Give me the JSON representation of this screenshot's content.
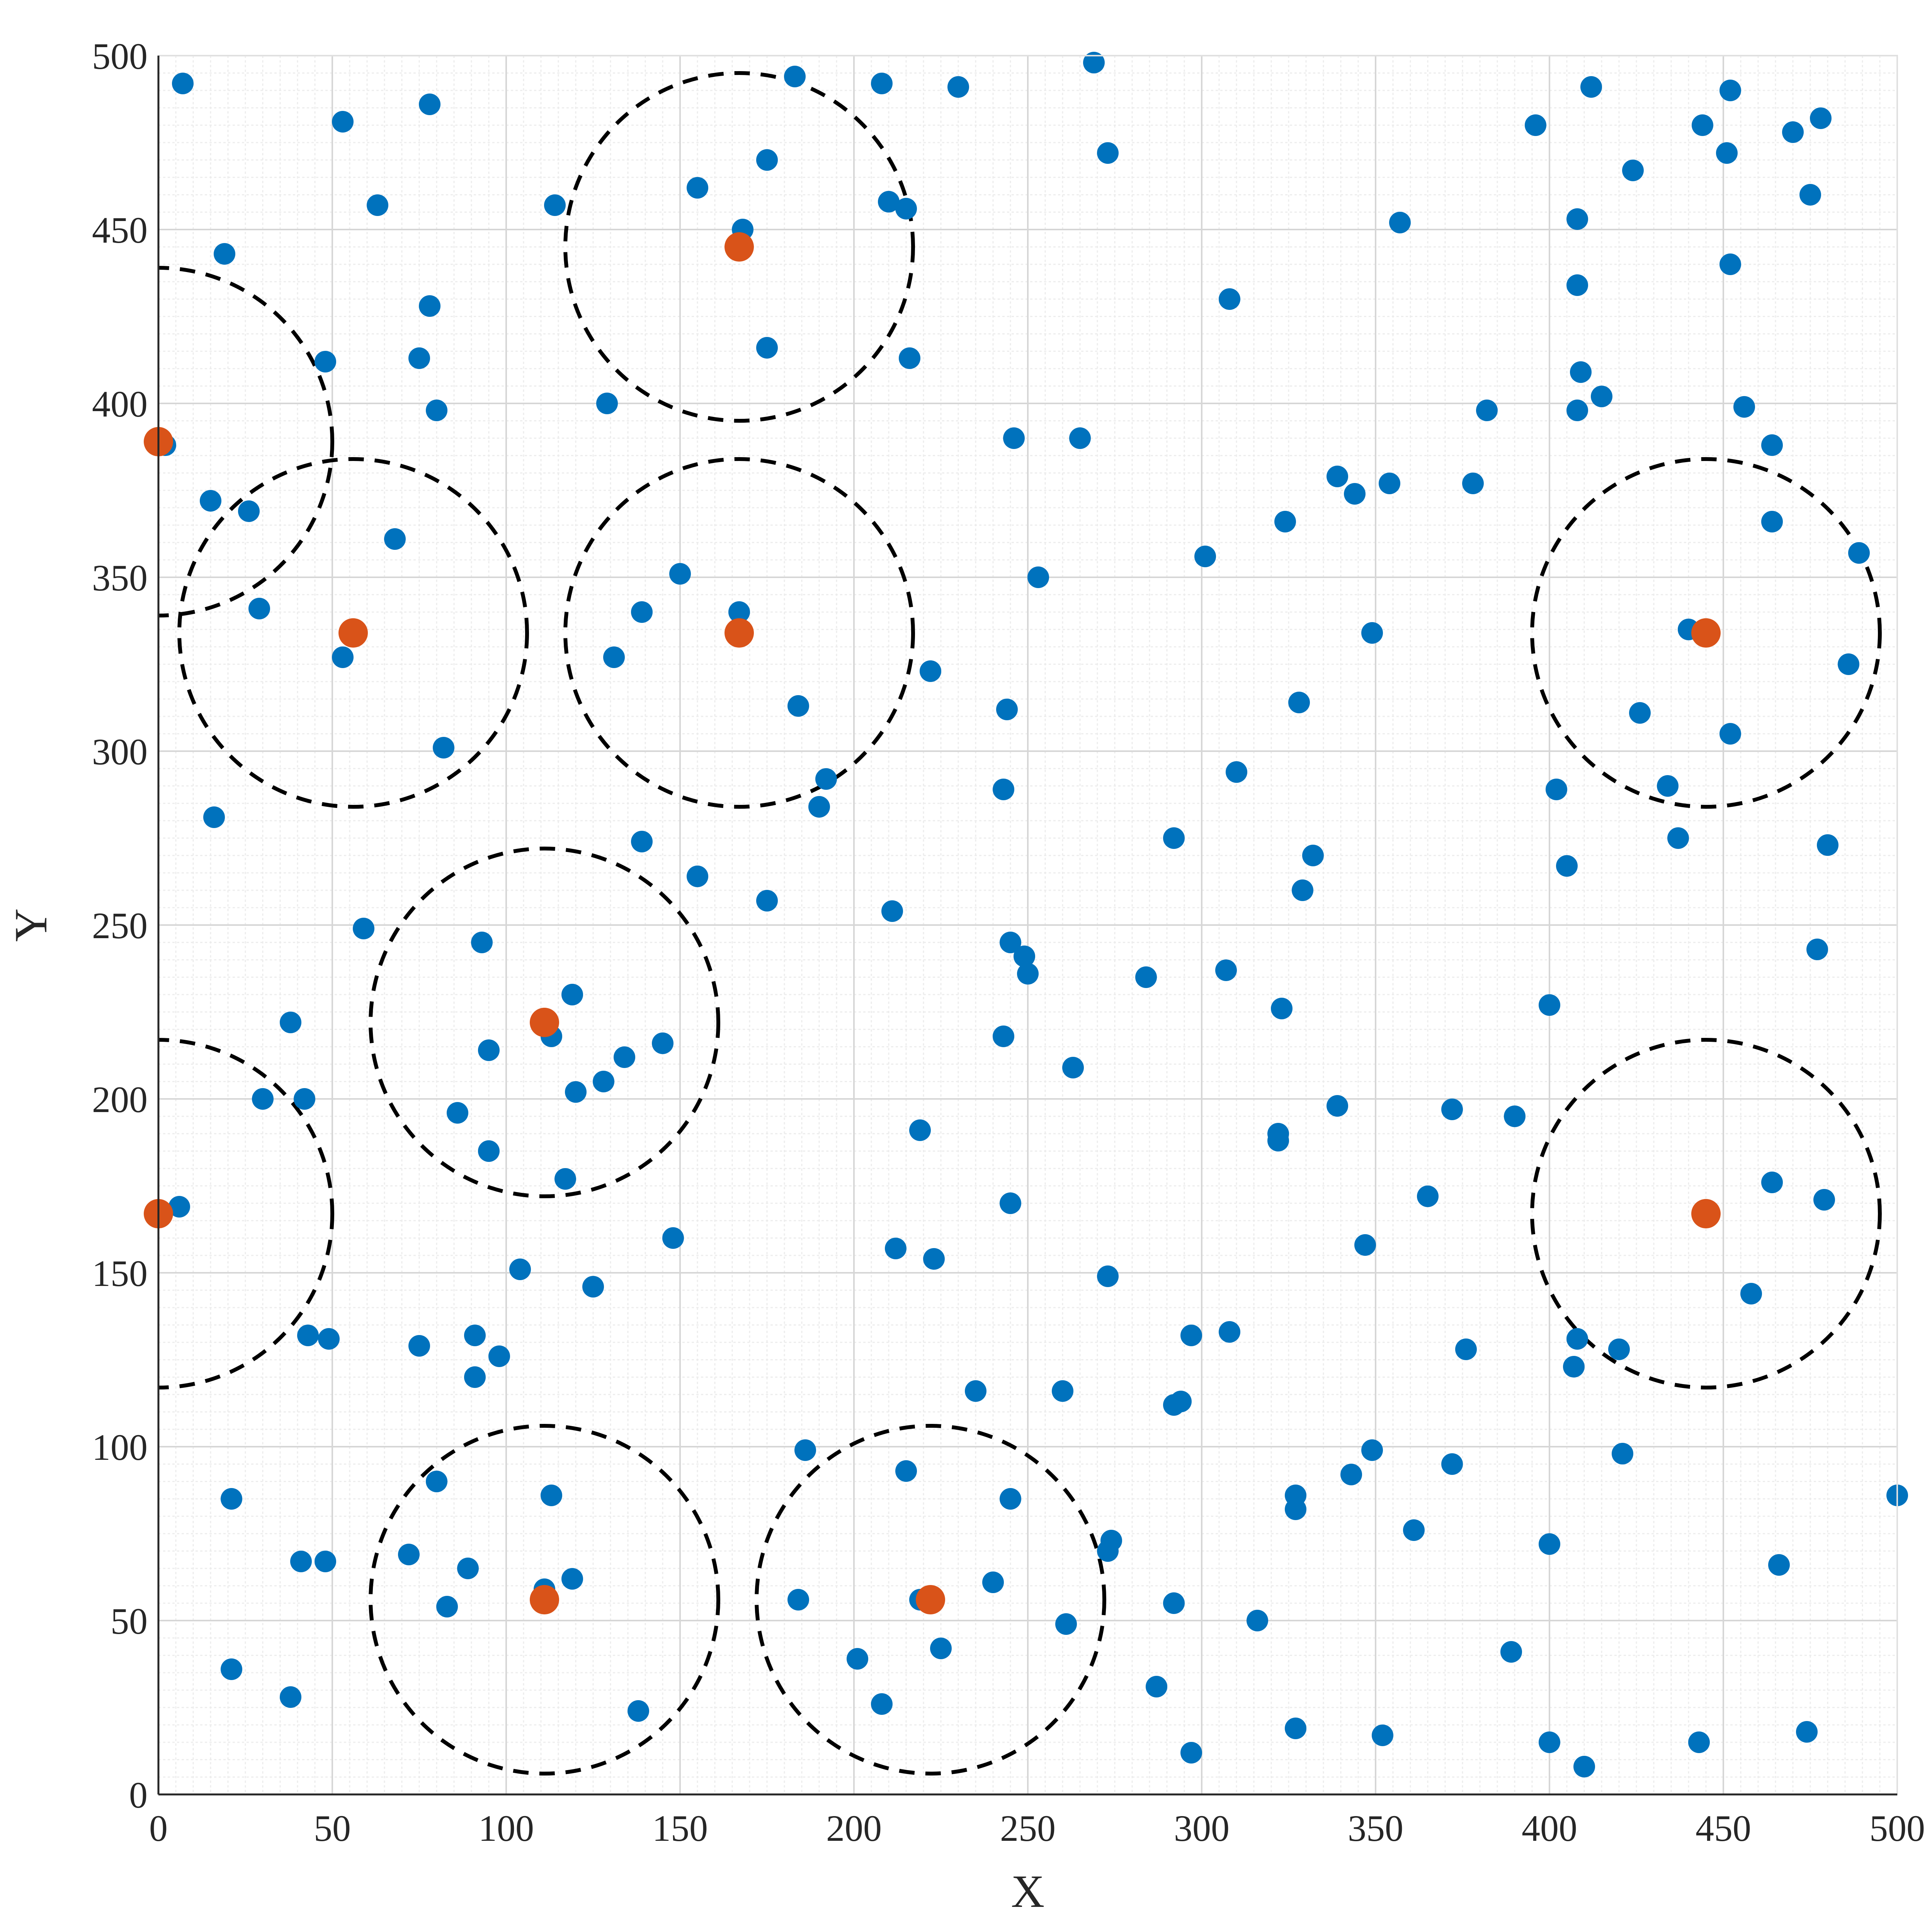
{
  "chart_data": {
    "type": "scatter",
    "title": "",
    "xlabel": "X",
    "ylabel": "Y",
    "xlim": [
      0,
      500
    ],
    "ylim": [
      0,
      500
    ],
    "xticks": [
      "0",
      "50",
      "100",
      "150",
      "200",
      "250",
      "300",
      "350",
      "400",
      "450",
      "500"
    ],
    "yticks": [
      "0",
      "50",
      "100",
      "150",
      "200",
      "250",
      "300",
      "350",
      "400",
      "450",
      "500"
    ],
    "grid": true,
    "minor_grid": true,
    "legend": "none",
    "colors": {
      "points": "#0072BD",
      "centers": "#D95319",
      "circles": "#000000"
    },
    "circle_radius": 50,
    "series": [
      {
        "points": [
          [
            7,
            492
          ],
          [
            53,
            481
          ],
          [
            78,
            486
          ],
          [
            183,
            494
          ],
          [
            208,
            492
          ],
          [
            230,
            491
          ],
          [
            269,
            498
          ],
          [
            19,
            443
          ],
          [
            63,
            457
          ],
          [
            114,
            457
          ],
          [
            155,
            462
          ],
          [
            175,
            470
          ],
          [
            168,
            450
          ],
          [
            210,
            458
          ],
          [
            215,
            456
          ],
          [
            273,
            472
          ],
          [
            78,
            428
          ],
          [
            48,
            412
          ],
          [
            75,
            413
          ],
          [
            80,
            398
          ],
          [
            129,
            400
          ],
          [
            175,
            416
          ],
          [
            216,
            413
          ],
          [
            246,
            390
          ],
          [
            265,
            390
          ],
          [
            308,
            430
          ],
          [
            357,
            452
          ],
          [
            396,
            480
          ],
          [
            412,
            491
          ],
          [
            424,
            467
          ],
          [
            408,
            453
          ],
          [
            408,
            434
          ],
          [
            409,
            409
          ],
          [
            408,
            398
          ],
          [
            415,
            402
          ],
          [
            382,
            398
          ],
          [
            444,
            480
          ],
          [
            452,
            490
          ],
          [
            451,
            472
          ],
          [
            452,
            440
          ],
          [
            470,
            478
          ],
          [
            478,
            482
          ],
          [
            475,
            460
          ],
          [
            456,
            399
          ],
          [
            464,
            388
          ],
          [
            464,
            366
          ],
          [
            489,
            357
          ],
          [
            2,
            388
          ],
          [
            15,
            372
          ],
          [
            26,
            369
          ],
          [
            29,
            341
          ],
          [
            53,
            327
          ],
          [
            68,
            361
          ],
          [
            82,
            301
          ],
          [
            16,
            281
          ],
          [
            150,
            351
          ],
          [
            139,
            340
          ],
          [
            131,
            327
          ],
          [
            167,
            340
          ],
          [
            184,
            313
          ],
          [
            192,
            292
          ],
          [
            190,
            284
          ],
          [
            222,
            323
          ],
          [
            244,
            312
          ],
          [
            243,
            289
          ],
          [
            253,
            350
          ],
          [
            339,
            379
          ],
          [
            344,
            374
          ],
          [
            354,
            377
          ],
          [
            324,
            366
          ],
          [
            301,
            356
          ],
          [
            349,
            334
          ],
          [
            328,
            314
          ],
          [
            310,
            294
          ],
          [
            378,
            377
          ],
          [
            440,
            335
          ],
          [
            486,
            325
          ],
          [
            426,
            311
          ],
          [
            452,
            305
          ],
          [
            434,
            290
          ],
          [
            402,
            289
          ],
          [
            437,
            275
          ],
          [
            480,
            273
          ],
          [
            405,
            267
          ],
          [
            477,
            243
          ],
          [
            59,
            249
          ],
          [
            93,
            245
          ],
          [
            38,
            222
          ],
          [
            30,
            200
          ],
          [
            42,
            200
          ],
          [
            86,
            196
          ],
          [
            95,
            185
          ],
          [
            95,
            214
          ],
          [
            139,
            274
          ],
          [
            155,
            264
          ],
          [
            175,
            257
          ],
          [
            113,
            218
          ],
          [
            119,
            230
          ],
          [
            145,
            216
          ],
          [
            134,
            212
          ],
          [
            128,
            205
          ],
          [
            120,
            202
          ],
          [
            117,
            177
          ],
          [
            211,
            254
          ],
          [
            245,
            245
          ],
          [
            249,
            241
          ],
          [
            250,
            236
          ],
          [
            243,
            218
          ],
          [
            263,
            209
          ],
          [
            219,
            191
          ],
          [
            245,
            170
          ],
          [
            292,
            275
          ],
          [
            284,
            235
          ],
          [
            307,
            237
          ],
          [
            323,
            226
          ],
          [
            332,
            270
          ],
          [
            329,
            260
          ],
          [
            339,
            198
          ],
          [
            322,
            190
          ],
          [
            322,
            188
          ],
          [
            372,
            197
          ],
          [
            390,
            195
          ],
          [
            365,
            172
          ],
          [
            400,
            227
          ],
          [
            347,
            158
          ],
          [
            6,
            169
          ],
          [
            104,
            151
          ],
          [
            148,
            160
          ],
          [
            125,
            146
          ],
          [
            212,
            157
          ],
          [
            223,
            154
          ],
          [
            273,
            149
          ],
          [
            43,
            132
          ],
          [
            49,
            131
          ],
          [
            75,
            129
          ],
          [
            91,
            132
          ],
          [
            98,
            126
          ],
          [
            91,
            120
          ],
          [
            235,
            116
          ],
          [
            260,
            116
          ],
          [
            297,
            132
          ],
          [
            308,
            133
          ],
          [
            376,
            128
          ],
          [
            292,
            112
          ],
          [
            294,
            113
          ],
          [
            464,
            176
          ],
          [
            479,
            171
          ],
          [
            458,
            144
          ],
          [
            408,
            131
          ],
          [
            407,
            123
          ],
          [
            420,
            128
          ],
          [
            421,
            98
          ],
          [
            186,
            99
          ],
          [
            215,
            93
          ],
          [
            245,
            85
          ],
          [
            274,
            73
          ],
          [
            273,
            70
          ],
          [
            21,
            85
          ],
          [
            80,
            90
          ],
          [
            113,
            86
          ],
          [
            72,
            69
          ],
          [
            41,
            67
          ],
          [
            48,
            67
          ],
          [
            89,
            65
          ],
          [
            83,
            54
          ],
          [
            111,
            59
          ],
          [
            119,
            62
          ],
          [
            184,
            56
          ],
          [
            219,
            56
          ],
          [
            240,
            61
          ],
          [
            225,
            42
          ],
          [
            201,
            39
          ],
          [
            261,
            49
          ],
          [
            21,
            36
          ],
          [
            38,
            28
          ],
          [
            138,
            24
          ],
          [
            208,
            26
          ],
          [
            292,
            55
          ],
          [
            316,
            50
          ],
          [
            287,
            31
          ],
          [
            297,
            12
          ],
          [
            327,
            86
          ],
          [
            327,
            82
          ],
          [
            343,
            92
          ],
          [
            349,
            99
          ],
          [
            372,
            95
          ],
          [
            361,
            76
          ],
          [
            327,
            19
          ],
          [
            352,
            17
          ],
          [
            400,
            72
          ],
          [
            389,
            41
          ],
          [
            400,
            15
          ],
          [
            410,
            8
          ],
          [
            443,
            15
          ],
          [
            466,
            66
          ],
          [
            474,
            18
          ],
          [
            500,
            86
          ]
        ]
      },
      {
        "points": [
          [
            167,
            445
          ],
          [
            0,
            389
          ],
          [
            56,
            334
          ],
          [
            167,
            334
          ],
          [
            445,
            334
          ],
          [
            111,
            222
          ],
          [
            0,
            167
          ],
          [
            445,
            167
          ],
          [
            111,
            56
          ],
          [
            222,
            56
          ]
        ]
      }
    ]
  }
}
